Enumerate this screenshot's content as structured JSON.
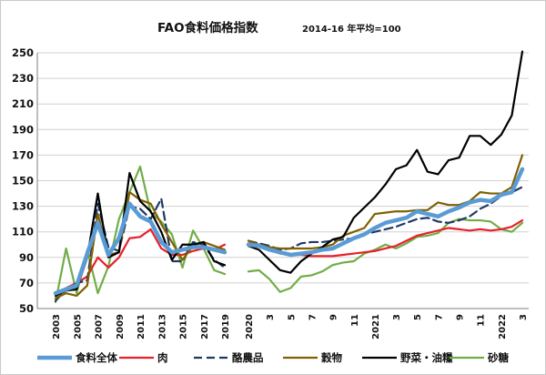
{
  "chart_data": {
    "type": "line",
    "title": "FAO食料価格指数",
    "subtitle": "2014-16 年平均=100",
    "ylim": [
      50,
      250
    ],
    "yticks": [
      50,
      70,
      90,
      110,
      130,
      150,
      170,
      190,
      210,
      230,
      250
    ],
    "grid": true,
    "legend_position": "bottom",
    "annual": {
      "x": [
        2003,
        2004,
        2005,
        2006,
        2007,
        2008,
        2009,
        2010,
        2011,
        2012,
        2013,
        2014,
        2015,
        2016,
        2017,
        2018,
        2019
      ],
      "tick_labels": [
        "2003",
        "2005",
        "2007",
        "2009",
        "2011",
        "2013",
        "2015",
        "2017",
        "2019"
      ],
      "tick_values": [
        2003,
        2005,
        2007,
        2009,
        2011,
        2013,
        2015,
        2017,
        2019
      ]
    },
    "monthly": {
      "x": [
        "2020-01",
        "2020-02",
        "2020-03",
        "2020-04",
        "2020-05",
        "2020-06",
        "2020-07",
        "2020-08",
        "2020-09",
        "2020-10",
        "2020-11",
        "2020-12",
        "2021-01",
        "2021-02",
        "2021-03",
        "2021-04",
        "2021-05",
        "2021-06",
        "2021-07",
        "2021-08",
        "2021-09",
        "2021-10",
        "2021-11",
        "2021-12",
        "2022-01",
        "2022-02",
        "2022-03"
      ],
      "tick_labels": [
        "2020",
        "3",
        "5",
        "7",
        "9",
        "11",
        "2021",
        "3",
        "5",
        "7",
        "9",
        "11",
        "2022",
        "3"
      ],
      "tick_values": [
        "2020-01",
        "2020-03",
        "2020-05",
        "2020-07",
        "2020-09",
        "2020-11",
        "2021-01",
        "2021-03",
        "2021-05",
        "2021-07",
        "2021-09",
        "2021-11",
        "2022-01",
        "2022-03"
      ]
    },
    "series": [
      {
        "name": "食料全体",
        "color": "#5b9bd5",
        "width": 4.5,
        "dash": "",
        "annual": [
          62,
          65,
          68,
          93,
          117,
          92,
          105,
          132,
          122,
          118,
          102,
          94,
          96,
          98,
          98,
          96,
          94
        ],
        "monthly": [
          100,
          99,
          96,
          94,
          92,
          93,
          94,
          96,
          97,
          101,
          105,
          108,
          113,
          117,
          119,
          121,
          126,
          124,
          122,
          126,
          129,
          133,
          135,
          134,
          139,
          141,
          159
        ]
      },
      {
        "name": "肉",
        "color": "#e8202a",
        "width": 2.2,
        "dash": "",
        "annual": [
          62,
          66,
          70,
          75,
          90,
          82,
          90,
          105,
          106,
          112,
          97,
          92,
          92,
          95,
          97,
          96,
          100
        ],
        "monthly": [
          101,
          100,
          96,
          93,
          92,
          92,
          91,
          91,
          91,
          92,
          93,
          94,
          95,
          97,
          99,
          103,
          107,
          109,
          111,
          113,
          112,
          111,
          112,
          111,
          112,
          114,
          119
        ]
      },
      {
        "name": "酪農品",
        "color": "#1f3864",
        "width": 2.2,
        "dash": "9,5",
        "annual": [
          56,
          65,
          70,
          72,
          132,
          98,
          95,
          130,
          128,
          120,
          136,
          87,
          87,
          102,
          100,
          88,
          82
        ],
        "monthly": [
          103,
          101,
          99,
          96,
          97,
          101,
          102,
          102,
          103,
          104,
          105,
          108,
          110,
          112,
          114,
          117,
          120,
          121,
          118,
          117,
          119,
          122,
          128,
          132,
          138,
          141,
          145
        ]
      },
      {
        "name": "穀物",
        "color": "#806000",
        "width": 2.2,
        "dash": "",
        "annual": [
          58,
          62,
          60,
          68,
          124,
          92,
          94,
          141,
          135,
          132,
          116,
          102,
          88,
          99,
          102,
          99,
          96
        ],
        "monthly": [
          103,
          100,
          98,
          97,
          97,
          97,
          97,
          98,
          100,
          107,
          110,
          113,
          124,
          125,
          126,
          126,
          127,
          127,
          133,
          131,
          131,
          134,
          141,
          140,
          140,
          145,
          170
        ]
      },
      {
        "name": "野菜・油糧",
        "color": "#000000",
        "width": 2.2,
        "dash": "",
        "annual": [
          60,
          64,
          65,
          90,
          140,
          90,
          94,
          156,
          134,
          126,
          110,
          88,
          100,
          100,
          102,
          87,
          84
        ],
        "monthly": [
          99,
          96,
          88,
          80,
          78,
          87,
          93,
          98,
          104,
          106,
          121,
          129,
          137,
          147,
          159,
          162,
          174,
          157,
          155,
          166,
          168,
          185,
          185,
          178,
          186,
          201,
          251
        ]
      },
      {
        "name": "砂糖",
        "color": "#70ad47",
        "width": 2.2,
        "dash": "",
        "annual": [
          55,
          97,
          62,
          96,
          62,
          83,
          120,
          141,
          161,
          125,
          118,
          108,
          82,
          111,
          97,
          80,
          77
        ],
        "monthly": [
          79,
          80,
          73,
          63,
          66,
          75,
          76,
          79,
          84,
          86,
          87,
          93,
          96,
          100,
          97,
          101,
          106,
          107,
          109,
          117,
          120,
          119,
          119,
          118,
          112,
          110,
          117
        ]
      }
    ]
  }
}
